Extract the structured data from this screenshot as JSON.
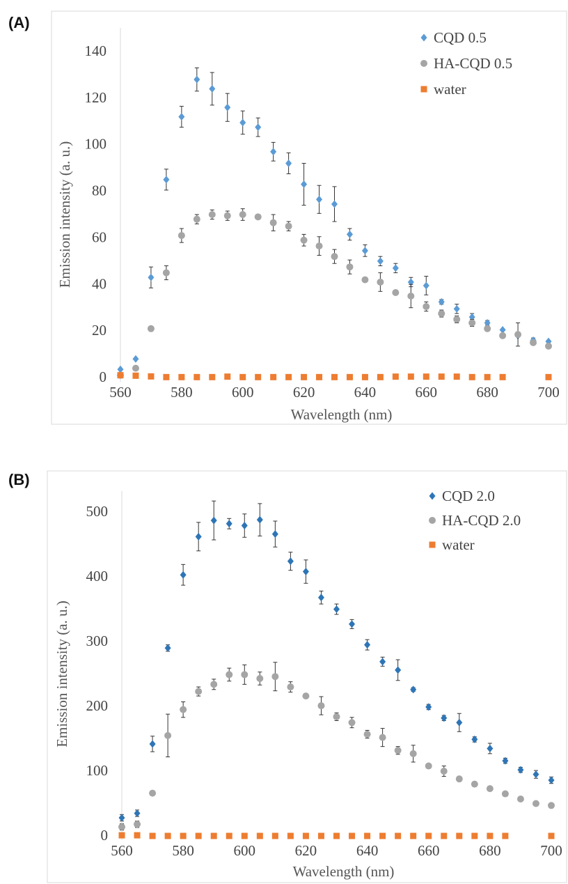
{
  "panels": {
    "a": {
      "label": "(A)"
    },
    "b": {
      "label": "(B)"
    }
  },
  "chart_data": [
    {
      "type": "scatter",
      "panel_label": "(A)",
      "xlabel": "Wavelength (nm)",
      "ylabel": "Emission intensity (a. u.)",
      "xlim": [
        560,
        700
      ],
      "ylim": [
        0,
        140
      ],
      "x_ticks": [
        560,
        580,
        600,
        620,
        640,
        660,
        680,
        700
      ],
      "y_ticks": [
        0,
        20,
        40,
        60,
        80,
        100,
        120,
        140
      ],
      "grid": false,
      "legend_position": "top-right",
      "series": [
        {
          "name": "CQD 0.5",
          "marker": "diamond",
          "color": "#5b9bd5",
          "x": [
            560,
            565,
            570,
            575,
            580,
            585,
            590,
            595,
            600,
            605,
            610,
            615,
            620,
            625,
            630,
            635,
            640,
            645,
            650,
            655,
            660,
            665,
            670,
            675,
            680,
            685,
            690,
            695,
            700
          ],
          "y": [
            3.5,
            8,
            43,
            85,
            112,
            128,
            124,
            116,
            109.5,
            107.5,
            97,
            92,
            83,
            76.5,
            74.5,
            61.5,
            54.5,
            50,
            47,
            41,
            39.5,
            32.5,
            29.5,
            26,
            23.5,
            20.5,
            18,
            16,
            15.5
          ],
          "err": [
            0,
            0,
            4.5,
            4.5,
            4.5,
            5,
            7,
            6,
            5,
            4,
            4,
            4.5,
            9,
            6,
            7.5,
            2.5,
            2.5,
            2,
            2,
            2,
            4,
            1,
            2,
            1.5,
            1,
            0,
            0,
            1,
            0.5
          ]
        },
        {
          "name": "HA-CQD 0.5",
          "marker": "circle",
          "color": "#a5a5a5",
          "x": [
            560,
            565,
            570,
            575,
            580,
            585,
            590,
            595,
            600,
            605,
            610,
            615,
            620,
            625,
            630,
            635,
            640,
            645,
            650,
            655,
            660,
            665,
            670,
            675,
            680,
            685,
            690,
            695,
            700
          ],
          "y": [
            1,
            4,
            21,
            45,
            61,
            68,
            70,
            69.5,
            70,
            69,
            66.5,
            65,
            59,
            56.5,
            52,
            47.5,
            42,
            41,
            36.5,
            35,
            30.5,
            27.5,
            25,
            23.5,
            21,
            18,
            18.5,
            15,
            13.5
          ],
          "err": [
            0,
            0,
            0,
            3,
            3,
            2,
            2,
            2,
            2.5,
            0,
            3.5,
            2,
            2.5,
            4,
            3,
            3,
            1,
            4,
            0,
            5,
            2,
            1.5,
            1.5,
            1.5,
            1,
            1,
            5,
            1,
            1
          ]
        },
        {
          "name": "water",
          "marker": "square",
          "color": "#ed7d31",
          "x": [
            560,
            565,
            570,
            575,
            580,
            585,
            590,
            595,
            600,
            605,
            610,
            615,
            620,
            625,
            630,
            635,
            640,
            645,
            650,
            655,
            660,
            665,
            670,
            675,
            680,
            685,
            700
          ],
          "y": [
            1,
            0.8,
            0.5,
            0.2,
            0.2,
            0.2,
            0.2,
            0.4,
            0.2,
            0.2,
            0.2,
            0.2,
            0.2,
            0.2,
            0.2,
            0.2,
            0.2,
            0.2,
            0.4,
            0.4,
            0.4,
            0.4,
            0.4,
            0.2,
            0.2,
            0.2,
            0.2
          ]
        }
      ]
    },
    {
      "type": "scatter",
      "panel_label": "(B)",
      "xlabel": "Wavelength (nm)",
      "ylabel": "Emission intensity (a. u.)",
      "xlim": [
        560,
        700
      ],
      "ylim": [
        0,
        500
      ],
      "x_ticks": [
        560,
        580,
        600,
        620,
        640,
        660,
        680,
        700
      ],
      "y_ticks": [
        0,
        100,
        200,
        300,
        400,
        500
      ],
      "grid": false,
      "legend_position": "top-right",
      "series": [
        {
          "name": "CQD 2.0",
          "marker": "diamond",
          "color": "#2e75b6",
          "x": [
            560,
            565,
            570,
            575,
            580,
            585,
            590,
            595,
            600,
            605,
            610,
            615,
            620,
            625,
            630,
            635,
            640,
            645,
            650,
            655,
            660,
            665,
            670,
            675,
            680,
            685,
            690,
            695,
            700
          ],
          "y": [
            28,
            35,
            142,
            290,
            403,
            462,
            487,
            482,
            479,
            488,
            466,
            424,
            408,
            368,
            350,
            327,
            295,
            269,
            256,
            226,
            199,
            182,
            175,
            149,
            135,
            116,
            102,
            95,
            86
          ],
          "err": [
            5,
            5,
            12,
            5,
            16,
            22,
            30,
            8,
            18,
            25,
            20,
            14,
            18,
            10,
            8,
            7,
            8,
            7,
            16,
            3,
            4,
            4,
            14,
            4,
            8,
            4,
            4,
            6,
            5
          ]
        },
        {
          "name": "HA-CQD 2.0",
          "marker": "circle",
          "color": "#a5a5a5",
          "x": [
            560,
            565,
            570,
            575,
            580,
            585,
            590,
            595,
            600,
            605,
            610,
            615,
            620,
            625,
            630,
            635,
            640,
            645,
            650,
            655,
            660,
            665,
            670,
            675,
            680,
            685,
            690,
            695,
            700
          ],
          "y": [
            14,
            18,
            66,
            155,
            195,
            223,
            234,
            249,
            249,
            243,
            246,
            230,
            216,
            201,
            184,
            175,
            157,
            152,
            132,
            127,
            108,
            100,
            88,
            80,
            73,
            65,
            57,
            50,
            47
          ],
          "err": [
            5,
            5,
            0,
            33,
            12,
            7,
            8,
            10,
            15,
            10,
            22,
            8,
            0,
            14,
            6,
            8,
            6,
            14,
            6,
            13,
            0,
            8,
            0,
            0,
            0,
            0,
            0,
            0,
            0
          ]
        },
        {
          "name": "water",
          "marker": "square",
          "color": "#ed7d31",
          "x": [
            560,
            565,
            570,
            575,
            580,
            585,
            590,
            595,
            600,
            605,
            610,
            615,
            620,
            625,
            630,
            635,
            640,
            645,
            650,
            655,
            660,
            665,
            670,
            675,
            680,
            685,
            700
          ],
          "y": [
            1,
            1,
            0,
            0,
            0,
            0,
            0,
            0,
            0,
            0,
            0,
            0,
            0,
            0,
            0,
            0,
            0,
            0,
            0,
            0,
            0,
            0,
            0,
            0,
            0,
            0,
            0
          ]
        }
      ]
    }
  ]
}
